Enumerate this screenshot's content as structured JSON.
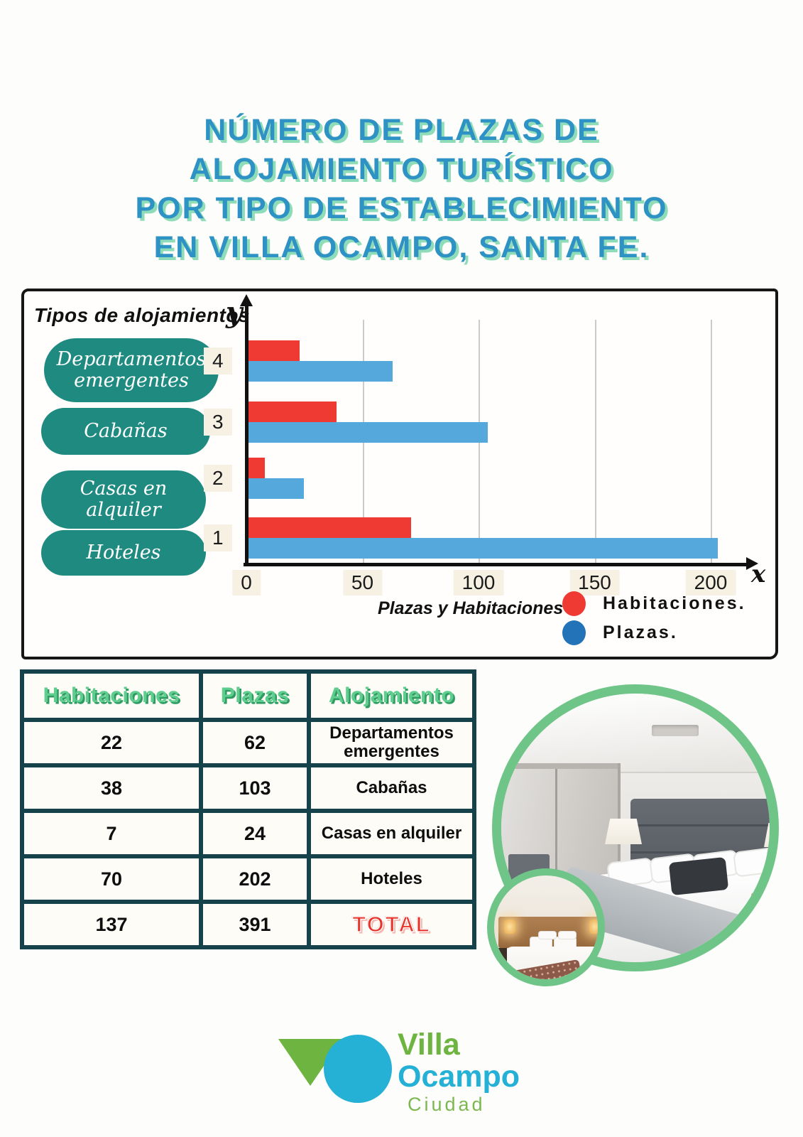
{
  "title": {
    "lines": [
      "NÚMERO DE PLAZAS DE",
      "ALOJAMIENTO TURÍSTICO",
      "POR TIPO DE ESTABLECIMIENTO",
      "EN VILLA OCAMPO, SANTA FE."
    ],
    "color": "#2e93c4",
    "shadow_color": "#8fdcb9"
  },
  "chart": {
    "panel_label": "Tipos de alojamientos",
    "y_axis_symbol": "y",
    "x_axis_symbol": "x",
    "pills": [
      "Departamentos emergentes",
      "Cabañas",
      "Casas en alquiler",
      "Hoteles"
    ],
    "pill_color": "#1e8a80",
    "legend_title": "Plazas y Habitaciones",
    "legend": [
      {
        "label": "Habitaciones.",
        "color": "#ee3a33"
      },
      {
        "label": "Plazas.",
        "color": "#2273b8"
      }
    ]
  },
  "chart_data": {
    "type": "bar",
    "orientation": "horizontal",
    "title": "Número de plazas de alojamiento turístico por tipo de establecimiento en Villa Ocampo, Santa Fe",
    "categories": [
      "Departamentos emergentes",
      "Cabañas",
      "Casas en alquiler",
      "Hoteles"
    ],
    "category_axis_ticks": [
      "4",
      "3",
      "2",
      "1"
    ],
    "series": [
      {
        "name": "Habitaciones",
        "color": "#ee3a33",
        "values": [
          22,
          38,
          7,
          70
        ]
      },
      {
        "name": "Plazas",
        "color": "#55a8dc",
        "values": [
          62,
          103,
          24,
          202
        ]
      }
    ],
    "x_ticks": [
      0,
      50,
      100,
      150,
      200
    ],
    "xlim": [
      0,
      210
    ],
    "grid": true,
    "legend_position": "bottom-right"
  },
  "table": {
    "headers": [
      "Habitaciones",
      "Plazas",
      "Alojamiento"
    ],
    "rows": [
      [
        "22",
        "62",
        "Departamentos emergentes"
      ],
      [
        "38",
        "103",
        "Cabañas"
      ],
      [
        "7",
        "24",
        "Casas en alquiler"
      ],
      [
        "70",
        "202",
        "Hoteles"
      ],
      [
        "137",
        "391",
        "TOTAL"
      ]
    ],
    "total_color": "#e8352b",
    "header_color": "#5ecd8e",
    "border_color": "#15424b"
  },
  "logo": {
    "name_top": "Villa",
    "name_bottom": "Ocampo",
    "subtitle": "Ciudad",
    "green": "#6db441",
    "blue": "#25b0d5"
  }
}
